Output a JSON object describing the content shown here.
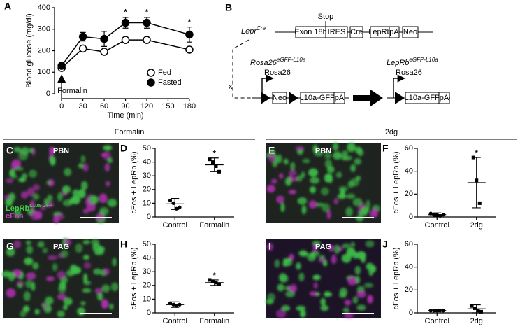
{
  "chart_data": [
    {
      "type": "line",
      "panel": "A",
      "xlabel": "Time (min)",
      "ylabel": "Blood glucose (mg/dl)",
      "x": [
        0,
        30,
        60,
        90,
        120,
        180
      ],
      "xlim": [
        -10,
        185
      ],
      "xticks": [
        0,
        30,
        60,
        90,
        120,
        150,
        180
      ],
      "ylim": [
        0,
        400
      ],
      "yticks": [
        0,
        100,
        200,
        300,
        400
      ],
      "legend": "lower right",
      "series": [
        {
          "name": "Fed",
          "color": "#000000",
          "marker_fill": "#ffffff",
          "values": [
            120,
            210,
            195,
            250,
            250,
            205
          ],
          "errors": [
            6,
            8,
            6,
            8,
            8,
            12
          ]
        },
        {
          "name": "Fasted",
          "color": "#000000",
          "marker_fill": "#000000",
          "values": [
            130,
            265,
            255,
            330,
            330,
            275
          ],
          "errors": [
            8,
            20,
            35,
            25,
            25,
            35
          ]
        }
      ],
      "annotations": [
        {
          "text": "*",
          "x": 90
        },
        {
          "text": "*",
          "x": 120
        },
        {
          "text": "*",
          "x": 180
        }
      ],
      "arrow": {
        "text": "Formalin",
        "x": 0
      }
    },
    {
      "type": "dot",
      "panel": "D",
      "ylabel": "cFos + LepRb (%)",
      "categories": [
        "Control",
        "Formalin"
      ],
      "markers": [
        "circle",
        "square"
      ],
      "ylim": [
        0,
        50
      ],
      "yticks": [
        0,
        10,
        20,
        30,
        40,
        50
      ],
      "points": [
        [
          12,
          10,
          6,
          7
        ],
        [
          42,
          40,
          37,
          33
        ]
      ],
      "means": [
        9.5,
        38
      ],
      "sd": [
        4,
        5
      ],
      "annotation": {
        "text": "*",
        "category": "Formalin"
      }
    },
    {
      "type": "dot",
      "panel": "F",
      "ylabel": "cFos + LepRb (%)",
      "categories": [
        "Control",
        "2dg"
      ],
      "markers": [
        "circle",
        "square"
      ],
      "ylim": [
        0,
        60
      ],
      "yticks": [
        0,
        20,
        40,
        60
      ],
      "points": [
        [
          3,
          2,
          2,
          1,
          2
        ],
        [
          52,
          32,
          12
        ]
      ],
      "means": [
        2,
        30
      ],
      "sd": [
        1.5,
        22
      ],
      "annotation": {
        "text": "*",
        "category": "2dg"
      }
    },
    {
      "type": "dot",
      "panel": "H",
      "ylabel": "cFos + LepRb (%)",
      "categories": [
        "Control",
        "Formalin"
      ],
      "markers": [
        "circle",
        "square"
      ],
      "ylim": [
        0,
        50
      ],
      "yticks": [
        0,
        10,
        20,
        30,
        40,
        50
      ],
      "points": [
        [
          7,
          6,
          5,
          6
        ],
        [
          24,
          23,
          22,
          21
        ]
      ],
      "means": [
        6,
        22
      ],
      "sd": [
        2,
        2
      ],
      "annotation": {
        "text": "*",
        "category": "Formalin"
      }
    },
    {
      "type": "dot",
      "panel": "J",
      "ylabel": "cFos + LepRb (%)",
      "categories": [
        "Control",
        "2dg"
      ],
      "markers": [
        "circle",
        "square"
      ],
      "ylim": [
        0,
        60
      ],
      "yticks": [
        0,
        20,
        40,
        60
      ],
      "points": [
        [
          2,
          2,
          2,
          2,
          2
        ],
        [
          6,
          4,
          2,
          1
        ]
      ],
      "means": [
        2,
        3.5
      ],
      "sd": [
        1,
        3.5
      ]
    }
  ],
  "diagram": {
    "panel": "B",
    "lepr": {
      "gene": "Lepr",
      "sup": "Cre"
    },
    "stop": "Stop",
    "boxes1": [
      "Exon 18b",
      "IRES",
      "Cre",
      "LepRb",
      "pA",
      "Neo"
    ],
    "cross": "x",
    "rosa": {
      "gene": "Rosa26",
      "sup": "eGFP-L10a"
    },
    "promoter1": "Rosa26",
    "boxes2": [
      "Neo",
      "L10a-GFP",
      "pA"
    ],
    "result": {
      "gene": "LepRb",
      "sup": "eGFP-L10a"
    },
    "promoter2": "Rosa26",
    "boxes3": [
      "L10a-GFP",
      "pA"
    ]
  },
  "sections": [
    {
      "title": "Formalin"
    },
    {
      "title": "2dg"
    }
  ],
  "micrographs": [
    {
      "panel": "C",
      "region": "PBN",
      "legend": [
        {
          "text": "LepRb",
          "sup": "L10a-GFP"
        },
        {
          "text": "cFos"
        }
      ]
    },
    {
      "panel": "E",
      "region": "PBN"
    },
    {
      "panel": "G",
      "region": "PAG"
    },
    {
      "panel": "I",
      "region": "PAG"
    }
  ]
}
